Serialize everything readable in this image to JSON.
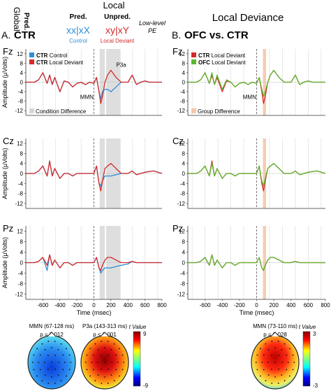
{
  "header": {
    "local": "Local",
    "global": "Global",
    "pred_col": "Pred.",
    "pred_row": "Pred.",
    "unpred_col": "Unpred.",
    "pred_seq": "xx|xX",
    "unpred_seq": "xy|xY",
    "control_label": "Control",
    "deviant_label": "Local Deviant",
    "lowlevel_pe": "Low-level PE",
    "right_title": "Local Deviance"
  },
  "panels": {
    "a_letter": "A.",
    "a_title": "CTR",
    "b_letter": "B.",
    "b_title": "OFC vs. CTR"
  },
  "colors": {
    "control": "#2e8fd8",
    "deviant": "#d42a2a",
    "ofc": "#5bb82f",
    "ctr": "#d42a2a",
    "condition_shade": "#d6d6d6",
    "group_shade": "#f6c7aa"
  },
  "chart_data": [
    {
      "type": "line",
      "panel": "A",
      "electrode": "Fz",
      "xlabel": "",
      "ylabel": "Amplitude (μVolts)",
      "xlim": [
        -800,
        800
      ],
      "ylim": [
        -14,
        14
      ],
      "yticks": [
        "12",
        "8",
        "4",
        "0",
        "-4",
        "-8",
        "-12"
      ],
      "legend": [
        {
          "bold": "CTR",
          "text": "Control"
        },
        {
          "bold": "CTR",
          "text": "Local Deviant"
        }
      ],
      "annotations": [
        "MMN",
        "P3a"
      ],
      "shade_label": "Condition Difference",
      "series": [
        {
          "name": "CTR Control",
          "x": [
            -800,
            -700,
            -650,
            -600,
            -550,
            -520,
            -490,
            -460,
            -400,
            -350,
            -300,
            -250,
            -200,
            -150,
            -100,
            -50,
            0,
            30,
            60,
            80,
            100,
            130,
            160,
            200,
            260,
            320,
            400,
            450,
            500,
            550,
            600,
            650,
            700,
            800
          ],
          "y": [
            0,
            0,
            1,
            4,
            -0.5,
            3,
            -1,
            2,
            -4,
            0.5,
            0,
            -2,
            -0.5,
            0,
            -1,
            0,
            -0.5,
            2,
            -4,
            -7,
            -4,
            -3,
            -3,
            -4,
            -2,
            0,
            0,
            3,
            -1,
            0,
            0.5,
            0,
            0,
            0
          ]
        },
        {
          "name": "CTR Local Deviant",
          "x": [
            -800,
            -700,
            -650,
            -600,
            -550,
            -520,
            -490,
            -460,
            -400,
            -350,
            -300,
            -250,
            -200,
            -150,
            -100,
            -50,
            0,
            30,
            60,
            80,
            100,
            130,
            160,
            200,
            260,
            320,
            400,
            450,
            500,
            550,
            600,
            650,
            700,
            800
          ],
          "y": [
            0,
            0,
            1,
            4,
            -0.5,
            3,
            -1,
            2,
            -4,
            0.5,
            0,
            -2,
            -0.5,
            0,
            -1,
            0,
            -0.5,
            2,
            -4,
            -9,
            -6,
            0,
            3,
            5,
            2,
            0,
            0,
            3,
            -1,
            0,
            0.5,
            0,
            0,
            0
          ]
        }
      ],
      "shaded": [
        [
          67,
          128
        ],
        [
          143,
          313
        ]
      ]
    },
    {
      "type": "line",
      "panel": "A",
      "electrode": "Cz",
      "xlabel": "",
      "ylabel": "Amplitude (μVolts)",
      "xlim": [
        -800,
        800
      ],
      "ylim": [
        -14,
        14
      ],
      "yticks": [
        "12",
        "8",
        "4",
        "0",
        "-4",
        "-8",
        "-12"
      ],
      "series": [
        {
          "name": "CTR Control",
          "x": [
            -800,
            -700,
            -650,
            -600,
            -550,
            -520,
            -490,
            -460,
            -400,
            -350,
            -300,
            -250,
            -200,
            -150,
            -100,
            -50,
            0,
            30,
            60,
            80,
            100,
            130,
            160,
            200,
            260,
            320,
            400,
            450,
            500,
            550,
            600,
            700,
            800
          ],
          "y": [
            0,
            0,
            1,
            3,
            -1,
            5,
            -1,
            2,
            -2,
            0,
            0,
            -1,
            0,
            0,
            0,
            0,
            0,
            3,
            -4,
            -5,
            -3,
            -1,
            -1,
            -1,
            -0.5,
            0,
            0,
            1,
            -0.5,
            0,
            0.5,
            1,
            0
          ]
        },
        {
          "name": "CTR Local Deviant",
          "x": [
            -800,
            -700,
            -650,
            -600,
            -550,
            -520,
            -490,
            -460,
            -400,
            -350,
            -300,
            -250,
            -200,
            -150,
            -100,
            -50,
            0,
            30,
            60,
            80,
            100,
            130,
            160,
            200,
            260,
            320,
            400,
            450,
            500,
            550,
            600,
            700,
            800
          ],
          "y": [
            0,
            0,
            1,
            3,
            -1,
            5,
            -1,
            2,
            -2,
            0,
            0,
            -1,
            0,
            0,
            0,
            0,
            0,
            3,
            -4,
            -7,
            -3,
            2,
            3,
            4,
            2,
            0,
            0,
            1,
            -0.5,
            0,
            0.5,
            1,
            0
          ]
        }
      ],
      "shaded": [
        [
          67,
          128
        ],
        [
          143,
          313
        ]
      ]
    },
    {
      "type": "line",
      "panel": "A",
      "electrode": "Pz",
      "xlabel": "Time (msec)",
      "ylabel": "Amplitude (μVolts)",
      "xlim": [
        -800,
        800
      ],
      "ylim": [
        -14,
        14
      ],
      "xticks": [
        "-600",
        "-400",
        "-200",
        "0",
        "200",
        "400",
        "600",
        "800"
      ],
      "yticks": [
        "12",
        "8",
        "4",
        "0",
        "-4",
        "-8",
        "-12"
      ],
      "series": [
        {
          "name": "CTR Control",
          "x": [
            -800,
            -700,
            -650,
            -600,
            -550,
            -520,
            -490,
            -460,
            -400,
            -350,
            -300,
            -250,
            -200,
            -150,
            -100,
            -50,
            0,
            30,
            60,
            80,
            100,
            130,
            160,
            200,
            260,
            320,
            400,
            450,
            500,
            600,
            700,
            800
          ],
          "y": [
            0,
            0,
            0.5,
            2,
            -3,
            3,
            -1,
            1,
            -2,
            0,
            0,
            -1,
            0,
            0,
            0,
            0,
            0,
            2,
            -2,
            -4,
            -3,
            -2,
            -2,
            -2,
            -1.5,
            -1,
            -0.5,
            0.5,
            0,
            0,
            0,
            0
          ]
        },
        {
          "name": "CTR Local Deviant",
          "x": [
            -800,
            -700,
            -650,
            -600,
            -550,
            -520,
            -490,
            -460,
            -400,
            -350,
            -300,
            -250,
            -200,
            -150,
            -100,
            -50,
            0,
            30,
            60,
            80,
            100,
            130,
            160,
            200,
            260,
            320,
            400,
            450,
            500,
            600,
            700,
            800
          ],
          "y": [
            0,
            0,
            0.5,
            2,
            -1,
            3,
            -1,
            1,
            -2,
            0,
            0,
            -1,
            0,
            0,
            0,
            0,
            0,
            2,
            -2,
            -3,
            -1,
            1,
            2,
            2,
            1,
            0,
            0,
            0.5,
            0,
            0,
            0,
            0
          ]
        }
      ],
      "shaded": [
        [
          67,
          128
        ],
        [
          143,
          313
        ]
      ]
    },
    {
      "type": "line",
      "panel": "B",
      "electrode": "Fz",
      "xlim": [
        -800,
        800
      ],
      "ylim": [
        -14,
        14
      ],
      "yticks": [
        "12",
        "8",
        "4",
        "0",
        "-4",
        "-8",
        "-12"
      ],
      "legend": [
        {
          "bold": "CTR",
          "text": "Local Deviant"
        },
        {
          "bold": "OFC",
          "text": "Local Deviant"
        }
      ],
      "annotations": [
        "MMN"
      ],
      "shade_label": "Group Difference",
      "series": [
        {
          "name": "CTR Local Deviant",
          "x": [
            -800,
            -700,
            -650,
            -600,
            -550,
            -520,
            -490,
            -460,
            -400,
            -350,
            -300,
            -250,
            -200,
            -150,
            -100,
            -50,
            0,
            30,
            60,
            80,
            100,
            130,
            160,
            200,
            260,
            320,
            400,
            450,
            500,
            550,
            600,
            650,
            700,
            800
          ],
          "y": [
            0,
            0,
            1,
            4,
            -0.5,
            3,
            -1,
            2,
            -4,
            0.5,
            0,
            -2,
            -0.5,
            0,
            -1,
            0,
            -0.5,
            2,
            -4,
            -9,
            -6,
            0,
            3,
            5,
            2,
            0,
            0,
            3,
            -1,
            0,
            0.5,
            0,
            0,
            0
          ]
        },
        {
          "name": "OFC Local Deviant",
          "x": [
            -800,
            -700,
            -650,
            -600,
            -550,
            -520,
            -490,
            -460,
            -400,
            -350,
            -300,
            -250,
            -200,
            -150,
            -100,
            -50,
            0,
            30,
            60,
            80,
            100,
            130,
            160,
            200,
            260,
            320,
            400,
            450,
            500,
            550,
            600,
            650,
            700,
            800
          ],
          "y": [
            0,
            0,
            1,
            4,
            -0.5,
            4,
            -1,
            3,
            -3,
            1,
            0,
            -2,
            -0.5,
            0,
            -1,
            0,
            -0.5,
            2,
            -3,
            -6,
            -4,
            0,
            3,
            5,
            2,
            0,
            0,
            3,
            -1,
            0,
            0.5,
            0,
            0,
            0
          ]
        }
      ],
      "shaded": [
        [
          73,
          110
        ]
      ]
    },
    {
      "type": "line",
      "panel": "B",
      "electrode": "Cz",
      "xlim": [
        -800,
        800
      ],
      "ylim": [
        -14,
        14
      ],
      "yticks": [
        "12",
        "8",
        "4",
        "0",
        "-4",
        "-8",
        "-12"
      ],
      "series": [
        {
          "name": "CTR Local Deviant",
          "x": [
            -800,
            -700,
            -650,
            -600,
            -550,
            -520,
            -490,
            -460,
            -400,
            -350,
            -300,
            -250,
            -200,
            -150,
            -100,
            -50,
            0,
            30,
            60,
            80,
            100,
            130,
            160,
            200,
            260,
            320,
            400,
            450,
            500,
            550,
            600,
            700,
            800
          ],
          "y": [
            0,
            0,
            1,
            3,
            -1,
            5,
            -1,
            2,
            -2,
            0,
            0,
            -1,
            0,
            0,
            0,
            0,
            0,
            3,
            -4,
            -7,
            -3,
            2,
            3,
            4,
            2,
            0,
            0,
            1,
            -0.5,
            0,
            0.5,
            1,
            0
          ]
        },
        {
          "name": "OFC Local Deviant",
          "x": [
            -800,
            -700,
            -650,
            -600,
            -550,
            -520,
            -490,
            -460,
            -400,
            -350,
            -300,
            -250,
            -200,
            -150,
            -100,
            -50,
            0,
            30,
            60,
            80,
            100,
            130,
            160,
            200,
            260,
            320,
            400,
            450,
            500,
            550,
            600,
            700,
            800
          ],
          "y": [
            0,
            0,
            1,
            3,
            -1,
            4,
            -1,
            2,
            -2,
            0,
            0,
            -1,
            0,
            0,
            0,
            0,
            0,
            3,
            -3,
            -5,
            -2,
            2,
            3,
            4,
            2,
            0,
            0,
            1,
            -0.5,
            0,
            0.5,
            1,
            0
          ]
        }
      ],
      "shaded": [
        [
          73,
          110
        ]
      ]
    },
    {
      "type": "line",
      "panel": "B",
      "electrode": "Pz",
      "xlabel": "Time (msec)",
      "xlim": [
        -800,
        800
      ],
      "ylim": [
        -14,
        14
      ],
      "xticks": [
        "-600",
        "-400",
        "-200",
        "0",
        "200",
        "400",
        "600",
        "800"
      ],
      "yticks": [
        "12",
        "8",
        "4",
        "0",
        "-4",
        "-8",
        "-12"
      ],
      "series": [
        {
          "name": "CTR Local Deviant",
          "x": [
            -800,
            -700,
            -650,
            -600,
            -550,
            -520,
            -490,
            -460,
            -400,
            -350,
            -300,
            -250,
            -200,
            -150,
            -100,
            -50,
            0,
            30,
            60,
            80,
            100,
            130,
            160,
            200,
            260,
            320,
            400,
            450,
            500,
            600,
            700,
            800
          ],
          "y": [
            0,
            0,
            0.5,
            2,
            -1,
            3,
            -1,
            1,
            -2,
            0,
            0,
            -1,
            0,
            0,
            0,
            0,
            0,
            2,
            -2,
            -3,
            -1,
            1,
            2,
            2,
            1,
            0,
            0,
            0.5,
            0,
            0,
            0,
            0
          ]
        },
        {
          "name": "OFC Local Deviant",
          "x": [
            -800,
            -700,
            -650,
            -600,
            -550,
            -520,
            -490,
            -460,
            -400,
            -350,
            -300,
            -250,
            -200,
            -150,
            -100,
            -50,
            0,
            30,
            60,
            80,
            100,
            130,
            160,
            200,
            260,
            320,
            400,
            450,
            500,
            600,
            700,
            800
          ],
          "y": [
            0,
            0,
            0.5,
            2,
            -1,
            3,
            -1,
            1,
            -2,
            0,
            0,
            -1,
            0,
            0,
            0,
            0,
            0,
            2,
            -2,
            -3,
            -1,
            1,
            2,
            2,
            1,
            0,
            0,
            0.5,
            0,
            0,
            0,
            0
          ]
        }
      ],
      "shaded": [
        [
          73,
          110
        ]
      ]
    }
  ],
  "topomaps": {
    "a_mmn_title": "MMN (67-128 ms)",
    "a_mmn_p": "p = 0.012",
    "a_p3a_title": "P3a (143-313 ms)",
    "a_p3a_p": "p < 0.001",
    "a_colorbar_label": "t Value",
    "a_colorbar_max": "9",
    "a_colorbar_min": "-9",
    "b_mmn_title": "MMN (73-110 ms)",
    "b_mmn_p": "p = 0.028",
    "b_colorbar_label": "t Value",
    "b_colorbar_max": "3",
    "b_colorbar_min": "-3"
  }
}
